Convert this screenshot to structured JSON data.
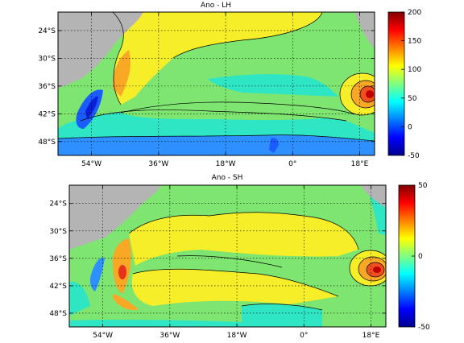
{
  "chart_data": [
    {
      "type": "heatmap",
      "title": "Ano - LH",
      "xlabel": "",
      "ylabel": "",
      "x_ticks": [
        "54°W",
        "36°W",
        "18°W",
        "0°",
        "18°E"
      ],
      "y_ticks": [
        "24°S",
        "30°S",
        "36°S",
        "42°S",
        "48°S"
      ],
      "x_tick_values": [
        -54,
        -36,
        -18,
        0,
        18
      ],
      "y_tick_values": [
        -24,
        -30,
        -36,
        -42,
        -48
      ],
      "xlim": [
        -63,
        22
      ],
      "ylim": [
        -51,
        -20
      ],
      "grid": true,
      "colorbar": {
        "ticks": [
          "200",
          "150",
          "100",
          "50",
          "0",
          "-50"
        ],
        "range": [
          -50,
          200
        ],
        "colormap": "jet"
      },
      "land_color": "#b4b4b4",
      "features": [
        {
          "lon": 14,
          "lat": -38,
          "value": 175
        },
        {
          "lon": -54,
          "lat": -37,
          "value": 150
        },
        {
          "lon": -40,
          "lat": -31,
          "value": 110
        },
        {
          "lon": -30,
          "lat": -47,
          "value": 10
        }
      ]
    },
    {
      "type": "heatmap",
      "title": "Ano - SH",
      "xlabel": "",
      "ylabel": "",
      "x_ticks": [
        "54°W",
        "36°W",
        "18°W",
        "0°",
        "18°E"
      ],
      "y_ticks": [
        "24°S",
        "30°S",
        "36°S",
        "42°S",
        "48°S"
      ],
      "x_tick_values": [
        -54,
        -36,
        -18,
        0,
        18
      ],
      "y_tick_values": [
        -24,
        -30,
        -36,
        -42,
        -48
      ],
      "xlim": [
        -63,
        22
      ],
      "ylim": [
        -51,
        -20
      ],
      "grid": true,
      "colorbar": {
        "ticks": [
          "50",
          "0",
          "-50"
        ],
        "range": [
          -50,
          50
        ],
        "colormap": "jet"
      },
      "land_color": "#b4b4b4",
      "features": [
        {
          "lon": 14,
          "lat": -40,
          "value": 40
        },
        {
          "lon": -53,
          "lat": -40,
          "value": 35
        },
        {
          "lon": -25,
          "lat": -35,
          "value": 18
        },
        {
          "lon": -56,
          "lat": -41,
          "value": -25
        }
      ]
    }
  ]
}
